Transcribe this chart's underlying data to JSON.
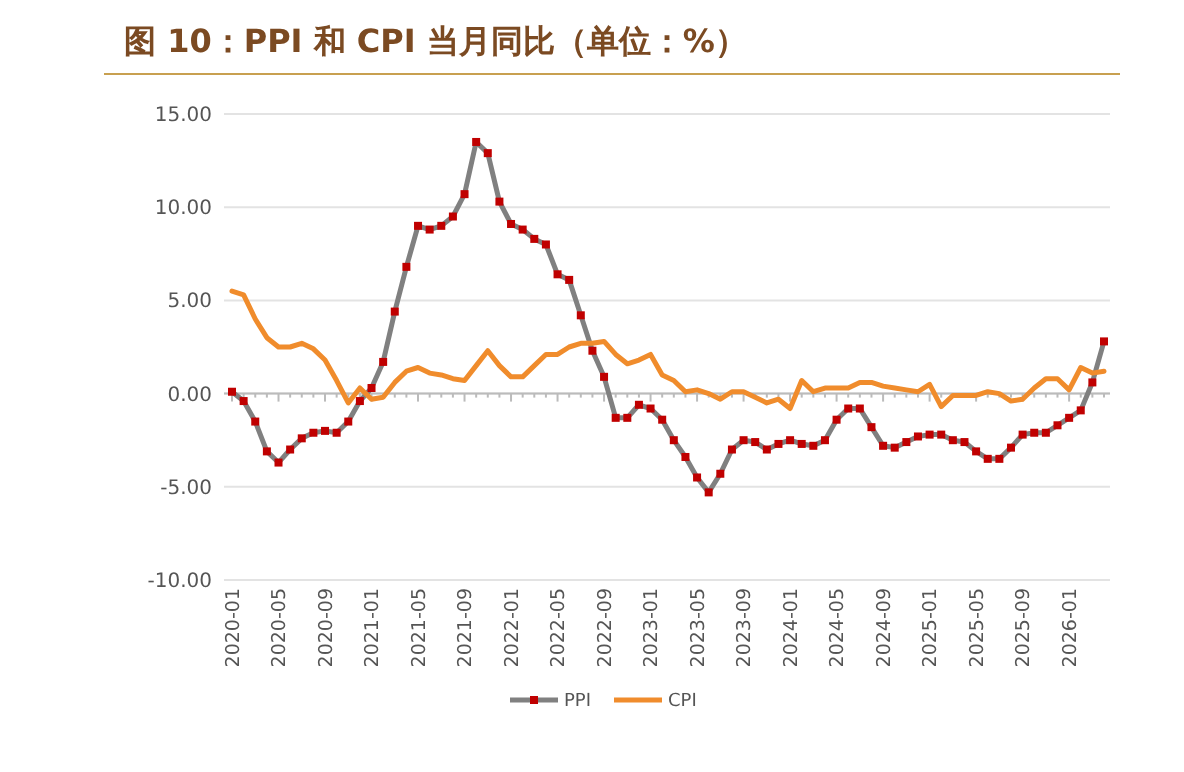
{
  "chart_data": {
    "type": "line",
    "title": "图 10：PPI 和 CPI 当月同比（单位：%）",
    "categories": [
      "2020-01",
      null,
      null,
      null,
      "2020-05",
      null,
      null,
      null,
      "2020-09",
      null,
      null,
      null,
      "2021-01",
      null,
      null,
      null,
      "2021-05",
      null,
      null,
      null,
      "2021-09",
      null,
      null,
      null,
      "2022-01",
      null,
      null,
      null,
      "2022-05",
      null,
      null,
      null,
      "2022-09",
      null,
      null,
      null,
      "2023-01",
      null,
      null,
      null,
      "2023-05",
      null,
      null,
      null,
      "2023-09",
      null,
      null,
      null,
      "2024-01",
      null,
      null,
      null,
      "2024-05",
      null,
      null,
      null,
      "2024-09",
      null,
      null,
      null,
      "2025-01",
      null,
      null,
      null,
      "2025-05",
      null,
      null,
      null,
      "2025-09",
      null,
      null,
      null,
      "2026-01",
      null,
      null,
      null
    ],
    "series": [
      {
        "name": "PPI",
        "color": "#808080",
        "marker": "square",
        "values": [
          0.1,
          -0.4,
          -1.5,
          -3.1,
          -3.7,
          -3.0,
          -2.4,
          -2.1,
          -2.0,
          -2.1,
          -1.5,
          -0.4,
          0.3,
          1.7,
          4.4,
          6.8,
          9.0,
          8.8,
          9.0,
          9.5,
          10.7,
          13.5,
          12.9,
          10.3,
          9.1,
          8.8,
          8.3,
          8.0,
          6.4,
          6.1,
          4.2,
          2.3,
          0.9,
          -1.3,
          -1.3,
          -0.6,
          -0.8,
          -1.4,
          -2.5,
          -3.4,
          -4.5,
          -5.3,
          -4.3,
          -3.0,
          -2.5,
          -2.6,
          -3.0,
          -2.7,
          -2.5,
          -2.7,
          -2.8,
          -2.5,
          -1.4,
          -0.8,
          -0.8,
          -1.8,
          -2.8,
          -2.9,
          -2.6,
          -2.3,
          -2.2,
          -2.2,
          -2.5,
          -2.6,
          -3.1,
          -3.5,
          -3.5,
          -2.9,
          -2.2,
          -2.1,
          -2.1,
          -1.7,
          -1.3,
          -0.9,
          0.6,
          2.8
        ]
      },
      {
        "name": "CPI",
        "color": "#f08c2c",
        "marker": "none",
        "values": [
          5.5,
          5.3,
          4.0,
          3.0,
          2.5,
          2.5,
          2.7,
          2.4,
          1.8,
          0.7,
          -0.5,
          0.3,
          -0.3,
          -0.2,
          0.6,
          1.2,
          1.4,
          1.1,
          1.0,
          0.8,
          0.7,
          1.5,
          2.3,
          1.5,
          0.9,
          0.9,
          1.5,
          2.1,
          2.1,
          2.5,
          2.7,
          2.7,
          2.8,
          2.1,
          1.6,
          1.8,
          2.1,
          1.0,
          0.7,
          0.1,
          0.2,
          0.0,
          -0.3,
          0.1,
          0.1,
          -0.2,
          -0.5,
          -0.3,
          -0.8,
          0.7,
          0.1,
          0.3,
          0.3,
          0.3,
          0.6,
          0.6,
          0.4,
          0.3,
          0.2,
          0.1,
          0.5,
          -0.7,
          -0.1,
          -0.1,
          -0.1,
          0.1,
          0.0,
          -0.4,
          -0.3,
          0.3,
          0.8,
          0.8,
          0.2,
          1.4,
          1.1,
          1.2
        ]
      }
    ],
    "ylim": [
      -10,
      15
    ],
    "yticks": [
      {
        "value": -10,
        "label": "-10.00"
      },
      {
        "value": -5,
        "label": "-5.00"
      },
      {
        "value": 0,
        "label": "0.00"
      },
      {
        "value": 5,
        "label": "5.00"
      },
      {
        "value": 10,
        "label": "10.00"
      },
      {
        "value": 15,
        "label": "15.00"
      }
    ],
    "grid": "y",
    "legend": "bottom"
  }
}
